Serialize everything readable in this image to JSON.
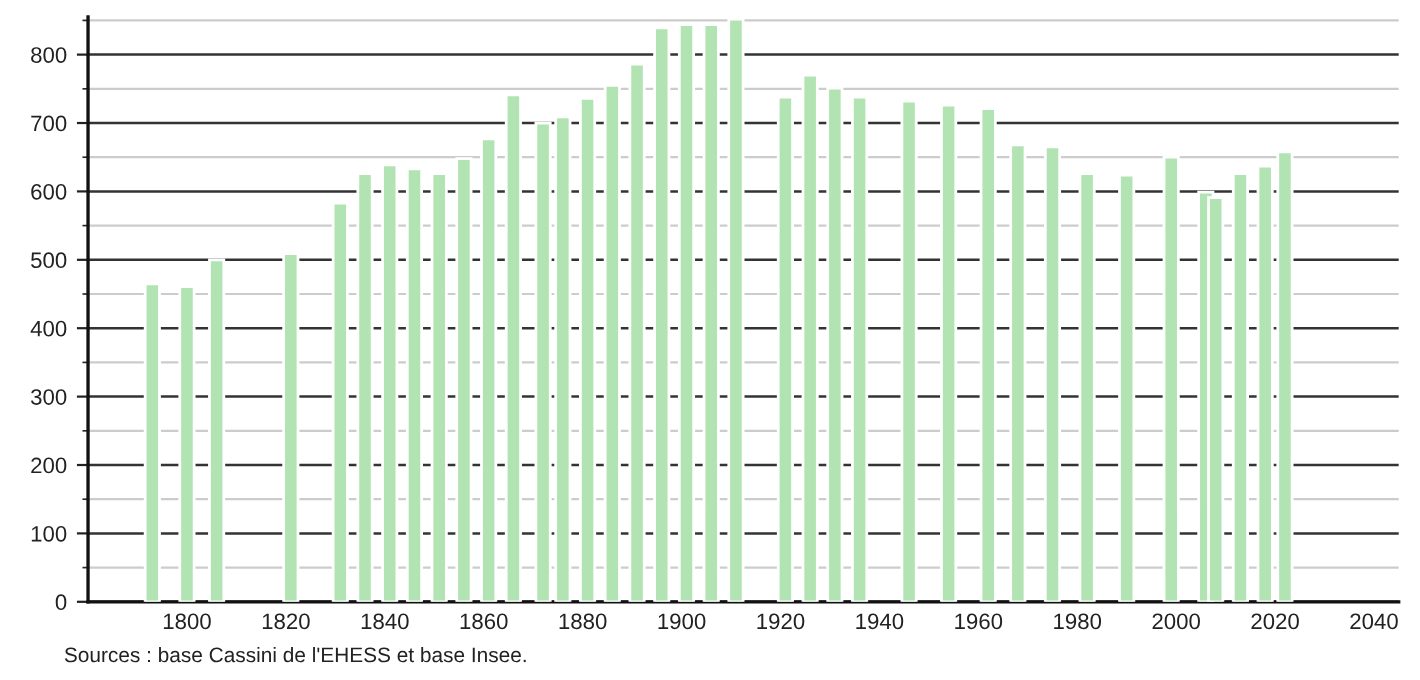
{
  "chart_data": {
    "type": "bar",
    "x": [
      1793,
      1800,
      1806,
      1821,
      1831,
      1836,
      1841,
      1846,
      1851,
      1856,
      1861,
      1866,
      1872,
      1876,
      1881,
      1886,
      1891,
      1896,
      1901,
      1906,
      1911,
      1921,
      1926,
      1931,
      1936,
      1946,
      1954,
      1962,
      1968,
      1975,
      1982,
      1990,
      1999,
      2006,
      2008,
      2013,
      2018,
      2022
    ],
    "values": [
      465,
      461,
      500,
      509,
      583,
      626,
      639,
      633,
      626,
      648,
      677,
      741,
      700,
      709,
      736,
      755,
      786,
      839,
      844,
      844,
      852,
      738,
      770,
      751,
      738,
      732,
      726,
      721,
      668,
      665,
      626,
      624,
      650,
      599,
      591,
      626,
      637,
      658
    ],
    "color": "#b2e3b2",
    "xlim": [
      1780,
      2045
    ],
    "xticks": [
      1800,
      1820,
      1840,
      1860,
      1880,
      1900,
      1920,
      1940,
      1960,
      1980,
      2000,
      2020,
      2040
    ],
    "ylim": [
      0,
      855
    ],
    "yticks": [
      0,
      100,
      200,
      300,
      400,
      500,
      600,
      700,
      800
    ],
    "grid": "y",
    "annotations": [
      "Sources : base Cassini de l'EHESS et base Insee."
    ]
  }
}
